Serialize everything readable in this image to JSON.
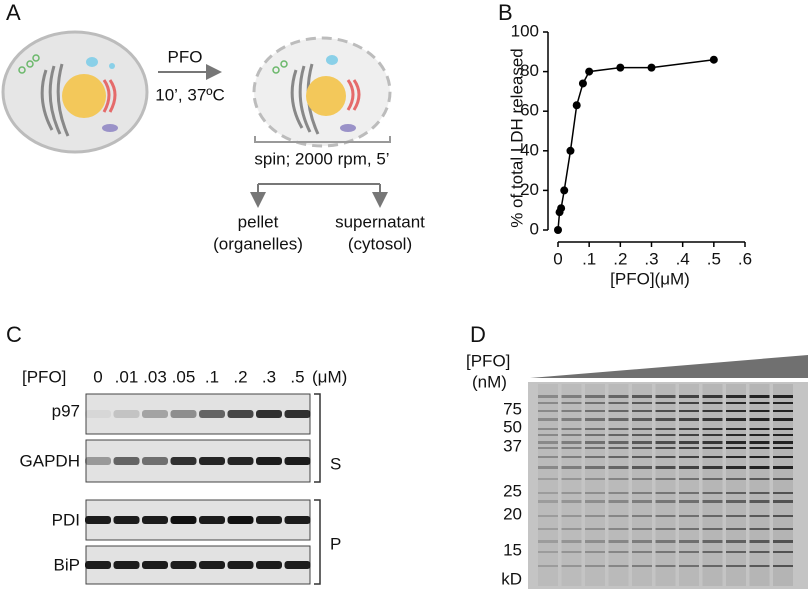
{
  "panel_a": {
    "label": "A",
    "treatment": "PFO",
    "condition": "10’, 37ºC",
    "spin": "spin; 2000 rpm, 5’",
    "outputs": [
      {
        "name": "pellet",
        "detail": "(organelles)"
      },
      {
        "name": "supernatant",
        "detail": "(cytosol)"
      }
    ]
  },
  "chart_data": {
    "type": "line",
    "panel_label": "B",
    "y_label": "% of total LDH released",
    "x_label": "[PFO](μM)",
    "x": [
      0,
      0.005,
      0.01,
      0.02,
      0.04,
      0.06,
      0.08,
      0.1,
      0.2,
      0.3,
      0.5
    ],
    "values": [
      0,
      9,
      11,
      20,
      40,
      63,
      74,
      80,
      82,
      82,
      86
    ],
    "color": "#000000",
    "xlim": [
      0,
      0.6
    ],
    "xticks": [
      0,
      {
        "value": 0.1,
        "label": ".1"
      },
      {
        "value": 0.2,
        "label": ".2"
      },
      {
        "value": 0.3,
        "label": ".3"
      },
      {
        "value": 0.4,
        "label": ".4"
      },
      {
        "value": 0.5,
        "label": ".5"
      },
      {
        "value": 0.6,
        "label": ".6"
      }
    ],
    "ylim": [
      0,
      100
    ],
    "yticks": [
      0,
      20,
      40,
      60,
      80,
      100
    ],
    "grid": false
  },
  "panel_c": {
    "label": "C",
    "header": "[PFO]",
    "concentrations": [
      "0",
      ".01",
      ".03",
      ".05",
      ".1",
      ".2",
      ".3",
      ".5"
    ],
    "unit": "(μM)",
    "rows": [
      "p97",
      "GAPDH",
      "PDI",
      "BiP"
    ],
    "groups": [
      "S",
      "P"
    ]
  },
  "panel_d": {
    "label": "D",
    "header": "[PFO]",
    "unit": "(nM)",
    "markers": [
      "75",
      "50",
      "37",
      "25",
      "20",
      "15"
    ],
    "marker_unit": "kD"
  }
}
